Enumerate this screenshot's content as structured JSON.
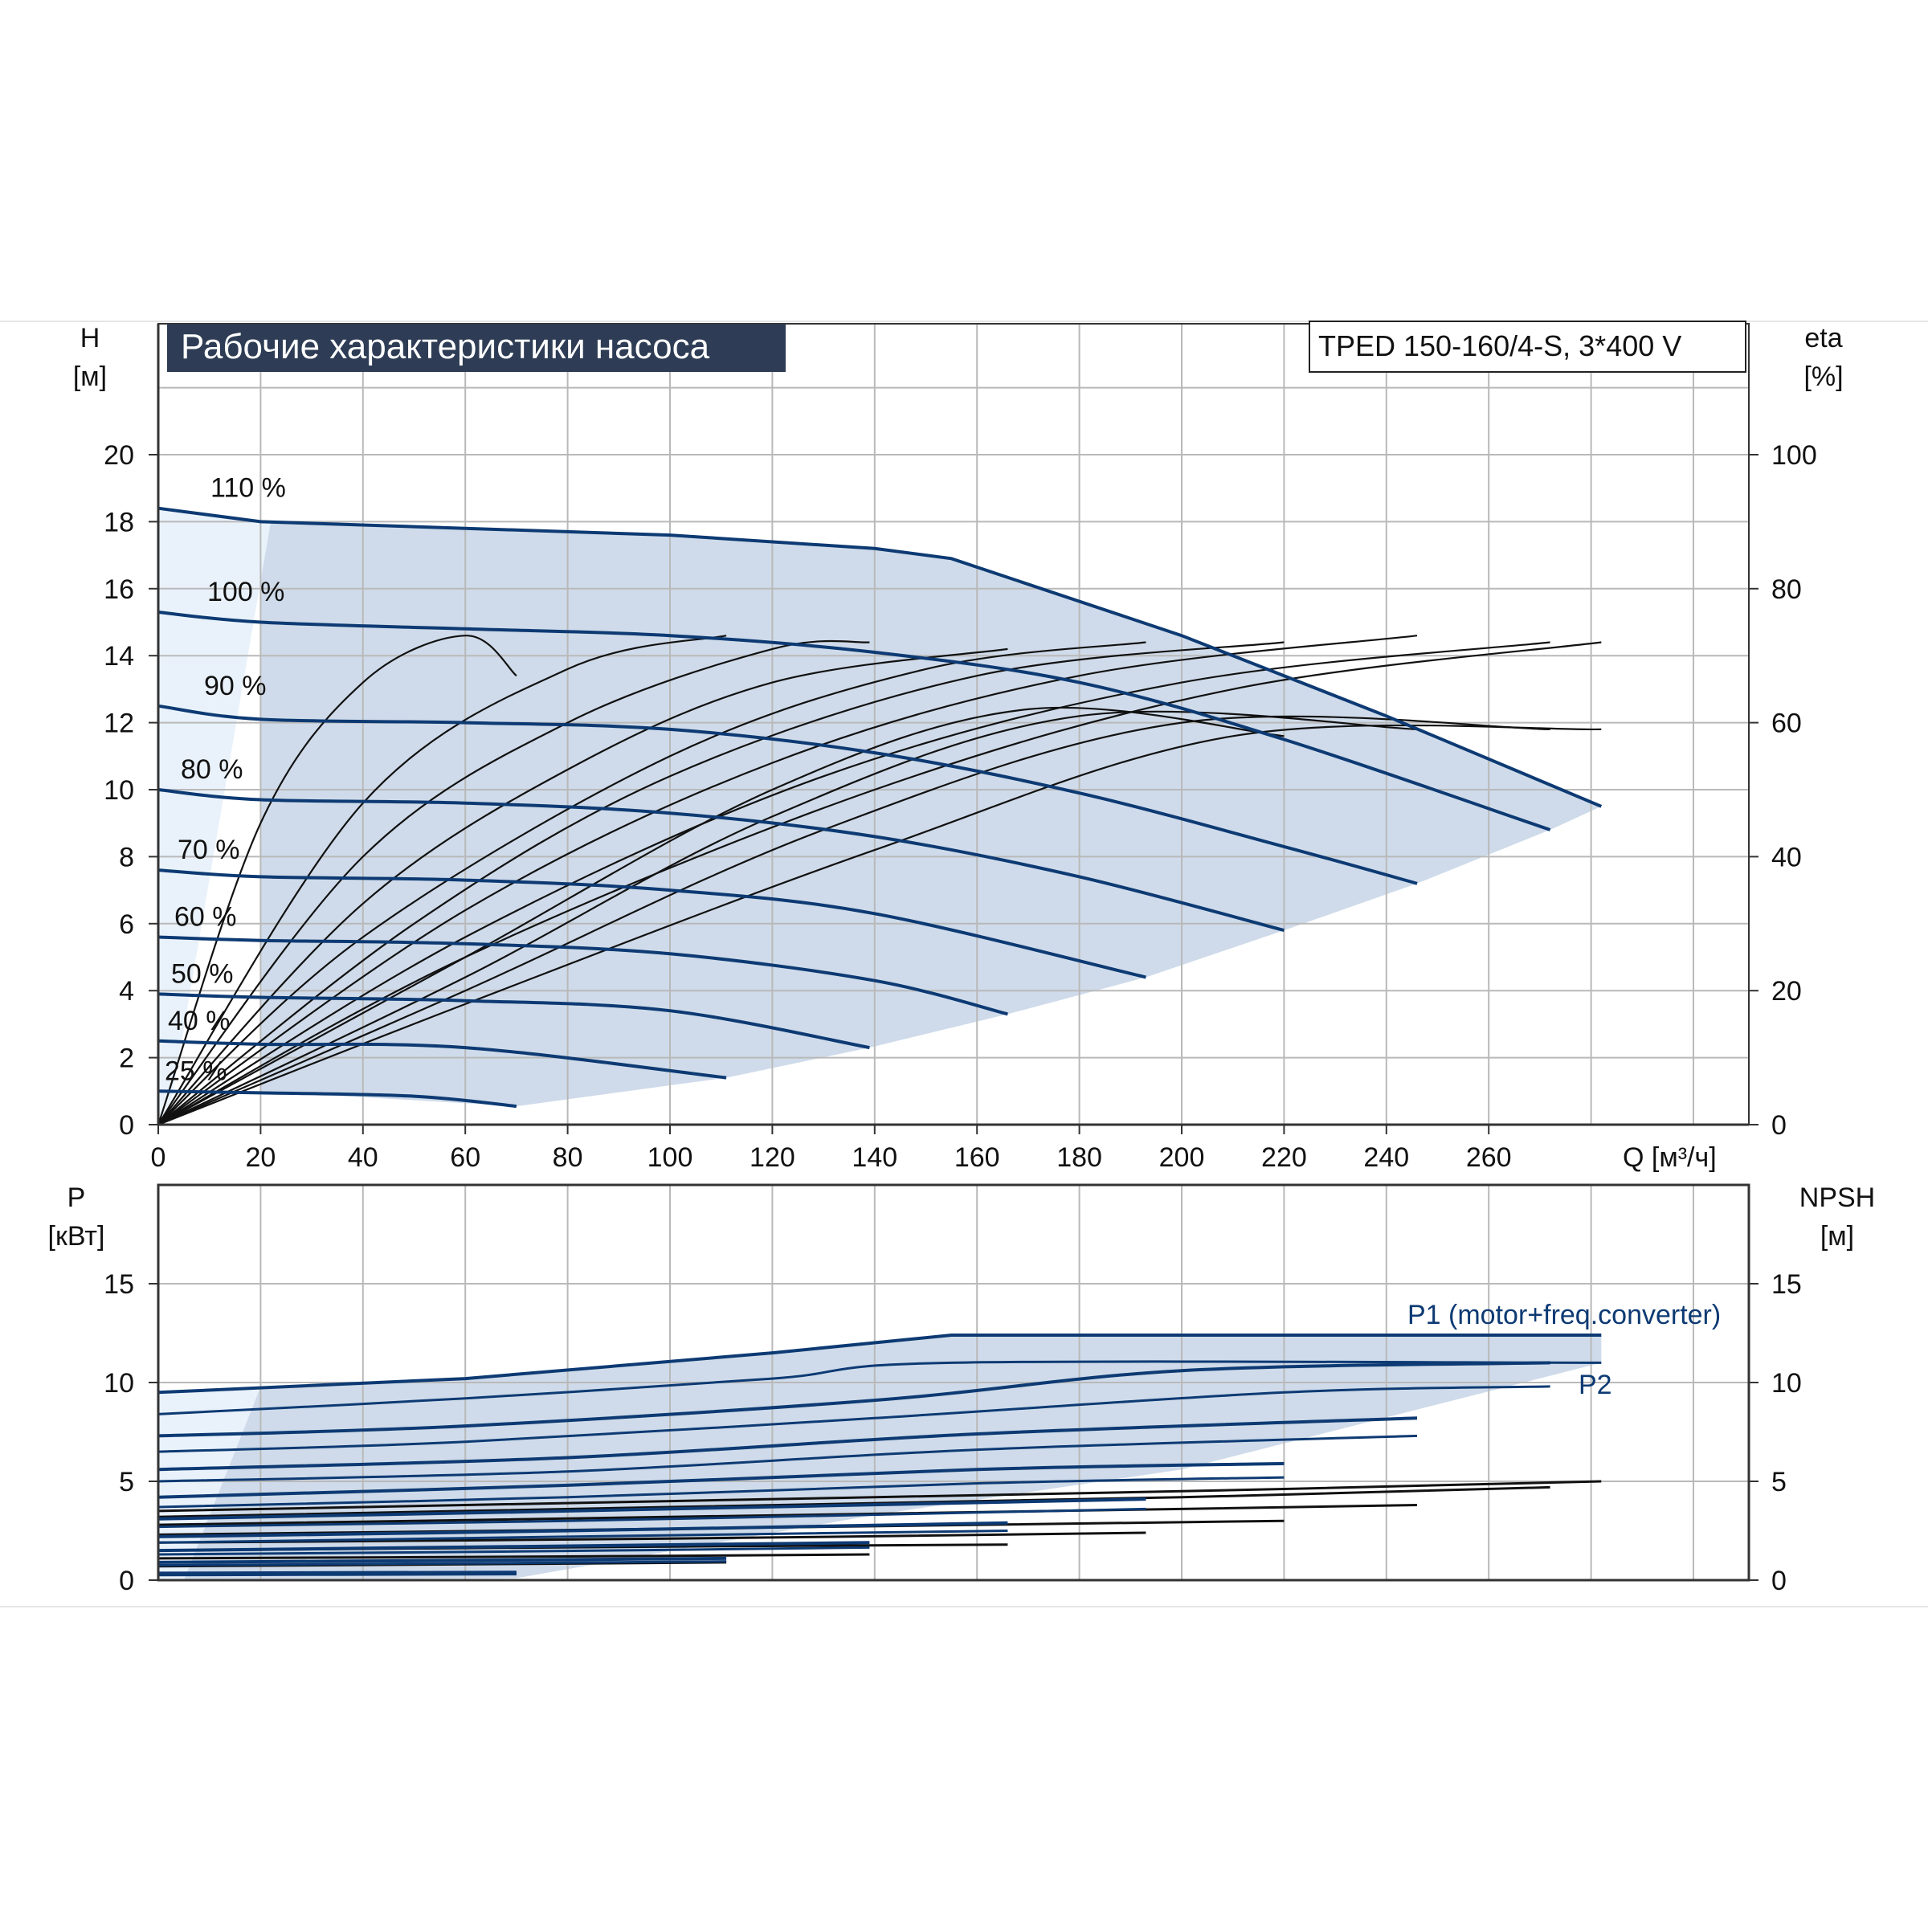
{
  "title": "Рабочие характеристики насоса",
  "model": "TPED 150-160/4-S, 3*400 V",
  "colors": {
    "curve": "#0d3a73",
    "efficiency": "#111111",
    "envelope_fill": "#cfdbea",
    "envelope_light": "#e9f2fb",
    "grid": "#b9b9b9",
    "title_bg": "#2e3d55",
    "title_text": "#ffffff"
  },
  "chart_data": [
    {
      "type": "line",
      "name": "head",
      "ylabel_top": "H",
      "ylabel_unit": "[м]",
      "y2label_top": "eta",
      "y2label_unit": "[%]",
      "xlabel": "Q [м³/ч]",
      "xlim": [
        0,
        310
      ],
      "ylim": [
        0,
        22
      ],
      "y2_scale": [
        0,
        110
      ],
      "grid": true,
      "x_ticks": [
        0,
        20,
        40,
        60,
        80,
        100,
        120,
        140,
        160,
        180,
        200,
        220,
        240,
        260
      ],
      "y_ticks": [
        0,
        2,
        4,
        6,
        8,
        10,
        12,
        14,
        16,
        18,
        20
      ],
      "y2_ticks": [
        0,
        20,
        40,
        60,
        80,
        100
      ],
      "series": [
        {
          "name": "110 %",
          "x": [
            0,
            20,
            60,
            100,
            140,
            155,
            200,
            240,
            282
          ],
          "y": [
            18.4,
            18.0,
            17.8,
            17.6,
            17.2,
            16.9,
            14.6,
            12.2,
            9.5
          ]
        },
        {
          "name": "100 %",
          "x": [
            0,
            20,
            60,
            100,
            140,
            180,
            220,
            272
          ],
          "y": [
            15.3,
            15.0,
            14.8,
            14.6,
            14.1,
            13.2,
            11.5,
            8.8
          ]
        },
        {
          "name": "90 %",
          "x": [
            0,
            20,
            60,
            100,
            140,
            180,
            220,
            246
          ],
          "y": [
            12.5,
            12.1,
            12.0,
            11.8,
            11.1,
            9.9,
            8.3,
            7.2
          ]
        },
        {
          "name": "80 %",
          "x": [
            0,
            20,
            60,
            100,
            140,
            180,
            220
          ],
          "y": [
            10.0,
            9.7,
            9.6,
            9.3,
            8.6,
            7.4,
            5.8
          ]
        },
        {
          "name": "70 %",
          "x": [
            0,
            20,
            60,
            100,
            140,
            193
          ],
          "y": [
            7.6,
            7.4,
            7.3,
            7.0,
            6.3,
            4.4
          ]
        },
        {
          "name": "60 %",
          "x": [
            0,
            20,
            60,
            100,
            140,
            166
          ],
          "y": [
            5.6,
            5.5,
            5.4,
            5.1,
            4.3,
            3.3
          ]
        },
        {
          "name": "50 %",
          "x": [
            0,
            20,
            60,
            100,
            139
          ],
          "y": [
            3.9,
            3.8,
            3.7,
            3.4,
            2.3
          ]
        },
        {
          "name": "40 %",
          "x": [
            0,
            20,
            60,
            111
          ],
          "y": [
            2.5,
            2.4,
            2.3,
            1.4
          ]
        },
        {
          "name": "25 %",
          "x": [
            0,
            20,
            50,
            70
          ],
          "y": [
            1.0,
            0.95,
            0.85,
            0.55
          ]
        }
      ],
      "efficiency_series": [
        {
          "x": [
            0,
            20,
            40,
            60,
            70
          ],
          "y": [
            0,
            45,
            66,
            73,
            67
          ]
        },
        {
          "x": [
            0,
            40,
            80,
            111
          ],
          "y": [
            0,
            48,
            68,
            73
          ]
        },
        {
          "x": [
            0,
            40,
            80,
            120,
            139
          ],
          "y": [
            0,
            40,
            60,
            71,
            72
          ]
        },
        {
          "x": [
            0,
            40,
            80,
            120,
            166
          ],
          "y": [
            0,
            33,
            53,
            66,
            71
          ]
        },
        {
          "x": [
            0,
            40,
            100,
            150,
            193
          ],
          "y": [
            0,
            28,
            55,
            68,
            72
          ]
        },
        {
          "x": [
            0,
            50,
            100,
            160,
            220
          ],
          "y": [
            0,
            30,
            52,
            67,
            72
          ]
        },
        {
          "x": [
            0,
            60,
            120,
            180,
            246
          ],
          "y": [
            0,
            32,
            54,
            67,
            73
          ]
        },
        {
          "x": [
            0,
            60,
            130,
            200,
            272
          ],
          "y": [
            0,
            28,
            52,
            66,
            72
          ]
        },
        {
          "x": [
            0,
            60,
            140,
            210,
            282
          ],
          "y": [
            0,
            25,
            50,
            65,
            72
          ]
        },
        {
          "x": [
            0,
            60,
            120,
            170,
            220
          ],
          "y": [
            0,
            25,
            50,
            62,
            58
          ]
        },
        {
          "x": [
            0,
            60,
            120,
            180,
            246
          ],
          "y": [
            0,
            22,
            46,
            61,
            59
          ]
        },
        {
          "x": [
            0,
            60,
            130,
            200,
            272
          ],
          "y": [
            0,
            20,
            44,
            60,
            59
          ]
        },
        {
          "x": [
            0,
            60,
            140,
            210,
            282
          ],
          "y": [
            0,
            18,
            41,
            58,
            59
          ]
        }
      ]
    },
    {
      "type": "line",
      "name": "power",
      "ylabel_top": "P",
      "ylabel_unit": "[кВт]",
      "y2label_top": "NPSH",
      "y2label_unit": "[м]",
      "xlim": [
        0,
        310
      ],
      "ylim": [
        0,
        20
      ],
      "y2lim": [
        0,
        20
      ],
      "grid": true,
      "y_ticks": [
        0,
        5,
        10,
        15
      ],
      "y2_ticks": [
        0,
        5,
        10,
        15
      ],
      "annotations": [
        "P1 (motor+freq.converter)",
        "P2"
      ],
      "series": [
        {
          "name": "P1 110 %",
          "x": [
            0,
            60,
            120,
            155,
            282
          ],
          "y": [
            9.5,
            10.2,
            11.5,
            12.4,
            12.4
          ]
        },
        {
          "name": "P2 110 %",
          "x": [
            0,
            60,
            120,
            155,
            282
          ],
          "y": [
            8.4,
            9.2,
            10.2,
            11.0,
            11.0
          ]
        },
        {
          "name": "P1 100 %",
          "x": [
            0,
            60,
            140,
            200,
            272
          ],
          "y": [
            7.3,
            7.8,
            9.1,
            10.6,
            11.0
          ]
        },
        {
          "name": "P2 100 %",
          "x": [
            0,
            60,
            140,
            220,
            272
          ],
          "y": [
            6.5,
            7.0,
            8.2,
            9.5,
            9.8
          ]
        },
        {
          "name": "P1 90 %",
          "x": [
            0,
            80,
            160,
            246
          ],
          "y": [
            5.6,
            6.2,
            7.4,
            8.2
          ]
        },
        {
          "name": "P2 90 %",
          "x": [
            0,
            80,
            160,
            246
          ],
          "y": [
            5.0,
            5.5,
            6.6,
            7.3
          ]
        },
        {
          "name": "P1 80 %",
          "x": [
            0,
            80,
            160,
            220
          ],
          "y": [
            4.2,
            4.8,
            5.6,
            5.9
          ]
        },
        {
          "name": "P2 80 %",
          "x": [
            0,
            80,
            160,
            220
          ],
          "y": [
            3.7,
            4.2,
            4.9,
            5.2
          ]
        },
        {
          "name": "P1 70 %",
          "x": [
            0,
            80,
            193
          ],
          "y": [
            3.1,
            3.5,
            4.1
          ]
        },
        {
          "name": "P2 70 %",
          "x": [
            0,
            80,
            193
          ],
          "y": [
            2.7,
            3.0,
            3.6
          ]
        },
        {
          "name": "P1 60 %",
          "x": [
            0,
            80,
            166
          ],
          "y": [
            2.2,
            2.5,
            2.9
          ]
        },
        {
          "name": "P2 60 %",
          "x": [
            0,
            80,
            166
          ],
          "y": [
            1.9,
            2.2,
            2.5
          ]
        },
        {
          "name": "P1 50 %",
          "x": [
            0,
            70,
            139
          ],
          "y": [
            1.5,
            1.7,
            1.9
          ]
        },
        {
          "name": "P2 50 %",
          "x": [
            0,
            70,
            139
          ],
          "y": [
            1.3,
            1.45,
            1.65
          ]
        },
        {
          "name": "P1 40 %",
          "x": [
            0,
            60,
            111
          ],
          "y": [
            0.9,
            1.0,
            1.1
          ]
        },
        {
          "name": "P2 40 %",
          "x": [
            0,
            60,
            111
          ],
          "y": [
            0.75,
            0.85,
            0.95
          ]
        },
        {
          "name": "P1 25 %",
          "x": [
            0,
            70
          ],
          "y": [
            0.35,
            0.4
          ]
        },
        {
          "name": "P2 25 %",
          "x": [
            0,
            70
          ],
          "y": [
            0.25,
            0.3
          ]
        }
      ],
      "npsh_series": [
        {
          "x": [
            0,
            100,
            200,
            282
          ],
          "y": [
            3.5,
            4.0,
            4.5,
            5.0
          ]
        },
        {
          "x": [
            0,
            100,
            200,
            272
          ],
          "y": [
            3.2,
            3.7,
            4.2,
            4.7
          ]
        },
        {
          "x": [
            0,
            100,
            200,
            246
          ],
          "y": [
            2.8,
            3.2,
            3.6,
            3.8
          ]
        },
        {
          "x": [
            0,
            100,
            220
          ],
          "y": [
            2.3,
            2.6,
            3.0
          ]
        },
        {
          "x": [
            0,
            100,
            193
          ],
          "y": [
            1.9,
            2.1,
            2.4
          ]
        },
        {
          "x": [
            0,
            100,
            166
          ],
          "y": [
            1.5,
            1.7,
            1.8
          ]
        },
        {
          "x": [
            0,
            80,
            139
          ],
          "y": [
            1.1,
            1.2,
            1.3
          ]
        },
        {
          "x": [
            0,
            60,
            111
          ],
          "y": [
            0.7,
            0.8,
            0.9
          ]
        },
        {
          "x": [
            0,
            70
          ],
          "y": [
            0.3,
            0.35
          ]
        }
      ]
    }
  ]
}
